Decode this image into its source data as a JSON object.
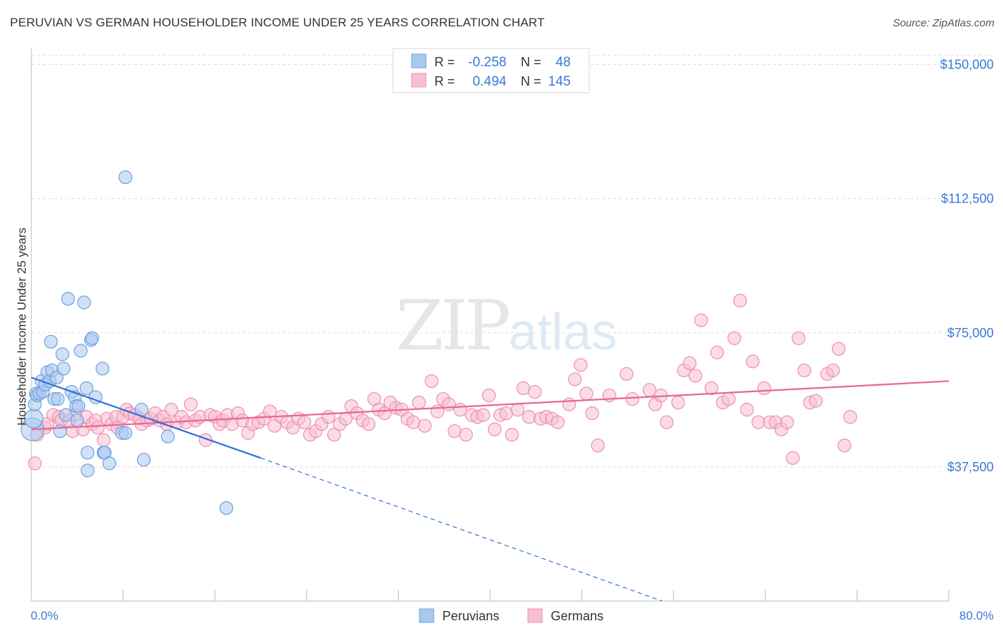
{
  "header": {
    "title": "PERUVIAN VS GERMAN HOUSEHOLDER INCOME UNDER 25 YEARS CORRELATION CHART",
    "source": "Source: ZipAtlas.com"
  },
  "watermark": {
    "part1": "ZIP",
    "part2": "atlas"
  },
  "legend_top": {
    "rows": [
      {
        "r_label": "R =",
        "r_value": "-0.258",
        "n_label": "N =",
        "n_value": "48"
      },
      {
        "r_label": "R =",
        "r_value": "0.494",
        "n_label": "N =",
        "n_value": "145"
      }
    ]
  },
  "legend_bottom": {
    "items": [
      "Peruvians",
      "Germans"
    ]
  },
  "colors": {
    "peruvian_fill": "#a9c8ef",
    "peruvian_stroke": "#6c9fe0",
    "peruvian_line": "#2f6fd6",
    "german_fill": "#f7c0d2",
    "german_stroke": "#ec8fb0",
    "german_line": "#e8669a",
    "value_blue": "#3a78d8",
    "grid": "#dddddd"
  },
  "chart_data": {
    "type": "scatter",
    "title": "PERUVIAN VS GERMAN HOUSEHOLDER INCOME UNDER 25 YEARS CORRELATION CHART",
    "xlabel": "",
    "ylabel": "Householder Income Under 25 years",
    "xlim": [
      0,
      80
    ],
    "ylim": [
      0,
      152500
    ],
    "x_tick_labels": [
      "0.0%",
      "80.0%"
    ],
    "y_ticks": [
      37500,
      75000,
      112500,
      150000
    ],
    "y_tick_labels": [
      "$37,500",
      "$75,000",
      "$112,500",
      "$150,000"
    ],
    "grid": true,
    "legend_position": "top-center",
    "series": [
      {
        "name": "Peruvians",
        "r": -0.258,
        "n": 48,
        "trend": {
          "x": [
            0,
            20
          ],
          "y": [
            62500,
            40000
          ],
          "extended_to": [
            55,
            0
          ]
        },
        "points": [
          [
            0.1,
            48000,
            3
          ],
          [
            0.2,
            51000,
            2
          ],
          [
            0.3,
            55000,
            1
          ],
          [
            0.4,
            58000,
            1
          ],
          [
            0.5,
            57500,
            1
          ],
          [
            0.7,
            58000,
            1
          ],
          [
            0.9,
            61500,
            1
          ],
          [
            1.0,
            58500,
            1
          ],
          [
            1.2,
            60500,
            1
          ],
          [
            1.4,
            64000,
            1
          ],
          [
            1.6,
            61500,
            1
          ],
          [
            1.7,
            72500,
            1
          ],
          [
            1.8,
            64500,
            1
          ],
          [
            2.0,
            56500,
            1
          ],
          [
            2.2,
            62500,
            1
          ],
          [
            2.3,
            56500,
            1
          ],
          [
            2.5,
            47500,
            1
          ],
          [
            2.7,
            69000,
            1
          ],
          [
            2.8,
            65000,
            1
          ],
          [
            3.0,
            52000,
            1
          ],
          [
            3.2,
            84500,
            1
          ],
          [
            3.5,
            58500,
            1
          ],
          [
            3.8,
            57000,
            1
          ],
          [
            3.9,
            54500,
            1
          ],
          [
            4.0,
            50500,
            1
          ],
          [
            4.1,
            54500,
            1
          ],
          [
            4.3,
            70000,
            1
          ],
          [
            4.6,
            83500,
            1
          ],
          [
            4.8,
            59500,
            1
          ],
          [
            4.9,
            41500,
            1
          ],
          [
            4.9,
            36500,
            1
          ],
          [
            5.2,
            73000,
            1
          ],
          [
            5.3,
            73500,
            1
          ],
          [
            5.6,
            57000,
            1
          ],
          [
            6.2,
            65000,
            1
          ],
          [
            6.3,
            41500,
            1
          ],
          [
            6.4,
            41500,
            1
          ],
          [
            6.8,
            38500,
            1
          ],
          [
            7.9,
            47000,
            1
          ],
          [
            8.2,
            47000,
            1
          ],
          [
            8.2,
            118500,
            1
          ],
          [
            9.6,
            53500,
            1
          ],
          [
            9.8,
            39500,
            1
          ],
          [
            11.9,
            46000,
            1
          ],
          [
            17.0,
            26000,
            1
          ]
        ]
      },
      {
        "name": "Germans",
        "r": 0.494,
        "n": 145,
        "trend": {
          "x": [
            0,
            80
          ],
          "y": [
            48000,
            61500
          ]
        },
        "points": [
          [
            0.3,
            38500,
            1
          ],
          [
            0.5,
            46500,
            1
          ],
          [
            1.2,
            48500,
            1
          ],
          [
            1.4,
            49500,
            1
          ],
          [
            1.9,
            52000,
            1
          ],
          [
            2.4,
            51500,
            1
          ],
          [
            2.6,
            50500,
            1
          ],
          [
            3.3,
            50500,
            1
          ],
          [
            3.6,
            47500,
            1
          ],
          [
            3.8,
            52000,
            1
          ],
          [
            4.5,
            48000,
            1
          ],
          [
            4.8,
            51500,
            1
          ],
          [
            5.3,
            49500,
            1
          ],
          [
            5.6,
            50500,
            1
          ],
          [
            5.8,
            48500,
            1
          ],
          [
            6.3,
            45000,
            1
          ],
          [
            6.6,
            51000,
            1
          ],
          [
            7.0,
            49500,
            1
          ],
          [
            7.4,
            51500,
            1
          ],
          [
            7.5,
            48500,
            1
          ],
          [
            8.0,
            51500,
            1
          ],
          [
            8.3,
            53500,
            1
          ],
          [
            8.6,
            52500,
            1
          ],
          [
            9.0,
            52000,
            1
          ],
          [
            9.4,
            51000,
            1
          ],
          [
            9.6,
            49500,
            1
          ],
          [
            10.1,
            50500,
            1
          ],
          [
            10.4,
            51000,
            1
          ],
          [
            10.8,
            52500,
            1
          ],
          [
            11.2,
            50500,
            1
          ],
          [
            11.5,
            51500,
            1
          ],
          [
            11.8,
            49500,
            1
          ],
          [
            12.2,
            53500,
            1
          ],
          [
            12.7,
            50000,
            1
          ],
          [
            13.1,
            51500,
            1
          ],
          [
            13.5,
            50000,
            1
          ],
          [
            13.9,
            55000,
            1
          ],
          [
            14.3,
            50500,
            1
          ],
          [
            14.7,
            51500,
            1
          ],
          [
            15.2,
            45000,
            1
          ],
          [
            15.6,
            52000,
            1
          ],
          [
            16.0,
            51500,
            1
          ],
          [
            16.4,
            49500,
            1
          ],
          [
            16.7,
            50500,
            1
          ],
          [
            17.1,
            52000,
            1
          ],
          [
            17.5,
            49500,
            1
          ],
          [
            18.0,
            52500,
            1
          ],
          [
            18.4,
            50500,
            1
          ],
          [
            18.9,
            47000,
            1
          ],
          [
            19.3,
            49500,
            1
          ],
          [
            19.8,
            50000,
            1
          ],
          [
            20.3,
            51000,
            1
          ],
          [
            20.8,
            53000,
            1
          ],
          [
            21.2,
            49000,
            1
          ],
          [
            21.8,
            51500,
            1
          ],
          [
            22.3,
            50000,
            1
          ],
          [
            22.8,
            48500,
            1
          ],
          [
            23.3,
            51000,
            1
          ],
          [
            23.8,
            50000,
            1
          ],
          [
            24.3,
            46500,
            1
          ],
          [
            24.8,
            47500,
            1
          ],
          [
            25.3,
            49500,
            1
          ],
          [
            25.9,
            51500,
            1
          ],
          [
            26.4,
            46500,
            1
          ],
          [
            26.9,
            49500,
            1
          ],
          [
            27.4,
            51000,
            1
          ],
          [
            27.9,
            54500,
            1
          ],
          [
            28.4,
            52500,
            1
          ],
          [
            28.9,
            50500,
            1
          ],
          [
            29.4,
            49500,
            1
          ],
          [
            29.9,
            56500,
            1
          ],
          [
            30.3,
            53500,
            1
          ],
          [
            30.8,
            52500,
            1
          ],
          [
            31.3,
            55500,
            1
          ],
          [
            31.8,
            54000,
            1
          ],
          [
            32.3,
            53500,
            1
          ],
          [
            32.8,
            51000,
            1
          ],
          [
            33.3,
            50000,
            1
          ],
          [
            33.8,
            55500,
            1
          ],
          [
            34.3,
            49000,
            1
          ],
          [
            34.9,
            61500,
            1
          ],
          [
            35.4,
            53000,
            1
          ],
          [
            35.9,
            56500,
            1
          ],
          [
            36.4,
            55000,
            1
          ],
          [
            36.9,
            47500,
            1
          ],
          [
            37.4,
            53500,
            1
          ],
          [
            37.9,
            46500,
            1
          ],
          [
            38.4,
            52000,
            1
          ],
          [
            38.9,
            51500,
            1
          ],
          [
            39.4,
            52000,
            1
          ],
          [
            39.9,
            57500,
            1
          ],
          [
            40.4,
            48000,
            1
          ],
          [
            40.9,
            52000,
            1
          ],
          [
            41.4,
            52500,
            1
          ],
          [
            41.9,
            46500,
            1
          ],
          [
            42.4,
            53500,
            1
          ],
          [
            42.9,
            59500,
            1
          ],
          [
            43.4,
            51500,
            1
          ],
          [
            43.9,
            58500,
            1
          ],
          [
            44.4,
            51000,
            1
          ],
          [
            44.9,
            51500,
            1
          ],
          [
            45.4,
            51000,
            1
          ],
          [
            45.9,
            50000,
            1
          ],
          [
            46.9,
            55000,
            1
          ],
          [
            47.4,
            62000,
            1
          ],
          [
            47.9,
            66000,
            1
          ],
          [
            48.4,
            58000,
            1
          ],
          [
            48.9,
            52500,
            1
          ],
          [
            49.4,
            43500,
            1
          ],
          [
            50.4,
            57500,
            1
          ],
          [
            51.9,
            63500,
            1
          ],
          [
            52.4,
            56500,
            1
          ],
          [
            53.9,
            59000,
            1
          ],
          [
            54.4,
            55000,
            1
          ],
          [
            54.9,
            57500,
            1
          ],
          [
            55.4,
            50000,
            1
          ],
          [
            56.4,
            55500,
            1
          ],
          [
            56.9,
            64500,
            1
          ],
          [
            57.4,
            66500,
            1
          ],
          [
            57.9,
            63000,
            1
          ],
          [
            58.4,
            78500,
            1
          ],
          [
            59.3,
            59500,
            1
          ],
          [
            59.8,
            69500,
            1
          ],
          [
            60.3,
            55500,
            1
          ],
          [
            60.8,
            56500,
            1
          ],
          [
            61.3,
            73500,
            1
          ],
          [
            61.8,
            84000,
            1
          ],
          [
            62.4,
            53500,
            1
          ],
          [
            62.9,
            67000,
            1
          ],
          [
            63.4,
            50000,
            1
          ],
          [
            63.9,
            59500,
            1
          ],
          [
            64.4,
            50000,
            1
          ],
          [
            64.9,
            50000,
            1
          ],
          [
            65.4,
            48000,
            1
          ],
          [
            65.9,
            50000,
            1
          ],
          [
            66.4,
            40000,
            1
          ],
          [
            66.9,
            73500,
            1
          ],
          [
            67.4,
            64500,
            1
          ],
          [
            67.9,
            55500,
            1
          ],
          [
            68.4,
            56000,
            1
          ],
          [
            69.4,
            63500,
            1
          ],
          [
            69.9,
            64500,
            1
          ],
          [
            70.4,
            70500,
            1
          ],
          [
            70.9,
            43500,
            1
          ],
          [
            71.4,
            51500,
            1
          ]
        ]
      }
    ]
  }
}
